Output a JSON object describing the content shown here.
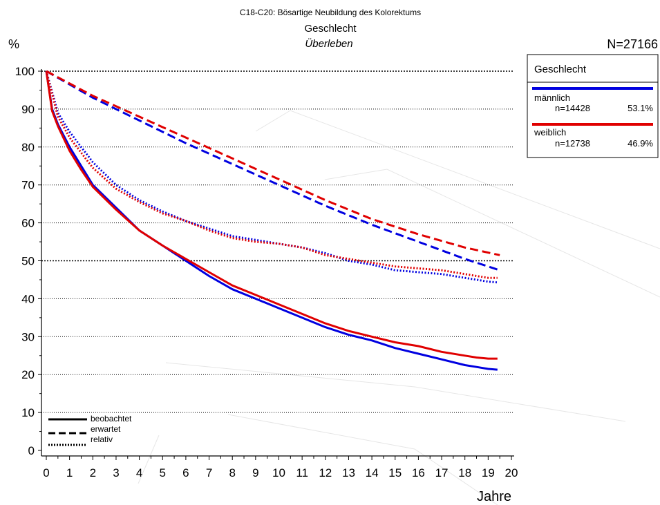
{
  "chart_data": {
    "type": "line",
    "title": "C18-C20: Bösartige Neubildung des Kolorektums",
    "subtitle": "Geschlecht",
    "subsubtitle": "Überleben",
    "ylabel": "%",
    "xlabel": "Jahre",
    "n_total": "N=27166",
    "xlim": [
      0,
      20
    ],
    "ylim": [
      0,
      100
    ],
    "xticks": [
      "0",
      "1",
      "2",
      "3",
      "4",
      "5",
      "6",
      "7",
      "8",
      "9",
      "10",
      "11",
      "12",
      "13",
      "14",
      "15",
      "16",
      "17",
      "18",
      "19",
      "20"
    ],
    "yticks": [
      "0",
      "10",
      "20",
      "30",
      "40",
      "50",
      "60",
      "70",
      "80",
      "90",
      "100"
    ],
    "grid": true,
    "legend": {
      "title": "Geschlecht",
      "placement": "top-right",
      "entries": [
        {
          "name": "männlich",
          "n": "n=14428",
          "pct": "53.1%",
          "color": "#0000e0"
        },
        {
          "name": "weiblich",
          "n": "n=12738",
          "pct": "46.9%",
          "color": "#e00000"
        }
      ]
    },
    "style_legend": [
      {
        "label": "beobachtet",
        "dash": "solid"
      },
      {
        "label": "erwartet",
        "dash": "dashed"
      },
      {
        "label": "relativ",
        "dash": "dotted"
      }
    ],
    "series": [
      {
        "name": "männlich",
        "kind": "beobachtet",
        "color": "#0000e0",
        "x": [
          0,
          0.25,
          0.5,
          1,
          1.5,
          2,
          3,
          4,
          5,
          6,
          7,
          8,
          9,
          10,
          11,
          12,
          13,
          14,
          15,
          16,
          17,
          18,
          18.5,
          19,
          19.4
        ],
        "y": [
          100,
          90,
          86,
          80,
          75,
          70,
          64,
          58,
          54,
          50,
          46,
          42.5,
          40,
          37.5,
          35,
          32.5,
          30.5,
          29,
          27,
          25.5,
          24,
          22.5,
          22,
          21.5,
          21.3
        ]
      },
      {
        "name": "weiblich",
        "kind": "beobachtet",
        "color": "#e00000",
        "x": [
          0,
          0.25,
          0.5,
          1,
          1.5,
          2,
          3,
          4,
          5,
          6,
          7,
          8,
          9,
          10,
          11,
          12,
          13,
          14,
          15,
          16,
          17,
          18,
          18.5,
          19,
          19.4
        ],
        "y": [
          100,
          89.5,
          85.5,
          79,
          74,
          69.5,
          63.5,
          58,
          54,
          50.5,
          47,
          43.5,
          41,
          38.5,
          36,
          33.5,
          31.5,
          30,
          28.5,
          27.5,
          26,
          25,
          24.5,
          24.2,
          24.2
        ]
      },
      {
        "name": "männlich",
        "kind": "erwartet",
        "color": "#0000e0",
        "x": [
          0,
          2,
          4,
          6,
          8,
          10,
          12,
          14,
          16,
          18,
          19.5
        ],
        "y": [
          100,
          93,
          87,
          81,
          75.5,
          70,
          64.5,
          59.5,
          55,
          50.5,
          47.5
        ]
      },
      {
        "name": "weiblich",
        "kind": "erwartet",
        "color": "#e00000",
        "x": [
          0,
          2,
          4,
          6,
          8,
          10,
          12,
          14,
          16,
          18,
          19.5
        ],
        "y": [
          100,
          93.5,
          88,
          82.5,
          77,
          71.5,
          66,
          61,
          57,
          53.5,
          51.5
        ]
      },
      {
        "name": "männlich",
        "kind": "relativ",
        "color": "#0000e0",
        "x": [
          0,
          0.5,
          1,
          2,
          3,
          4,
          5,
          6,
          7,
          8,
          9,
          10,
          11,
          12,
          13,
          14,
          15,
          16,
          17,
          18,
          18.5,
          19,
          19.4
        ],
        "y": [
          100,
          89,
          84,
          76,
          70,
          66,
          63,
          60.5,
          58.5,
          56.5,
          55.5,
          54.5,
          53.5,
          52,
          50,
          49,
          47.5,
          47,
          46.5,
          45.5,
          45,
          44.5,
          44.3
        ]
      },
      {
        "name": "weiblich",
        "kind": "relativ",
        "color": "#e00000",
        "x": [
          0,
          0.5,
          1,
          2,
          3,
          4,
          5,
          6,
          7,
          8,
          9,
          10,
          11,
          12,
          13,
          14,
          15,
          16,
          17,
          18,
          18.5,
          19,
          19.4
        ],
        "y": [
          100,
          88,
          82.5,
          74.5,
          69,
          65.5,
          62.5,
          60.5,
          58,
          56,
          55,
          54.5,
          53.5,
          51.5,
          50.5,
          49.5,
          48.5,
          48,
          47.5,
          46.5,
          46,
          45.5,
          45.5
        ]
      }
    ]
  }
}
